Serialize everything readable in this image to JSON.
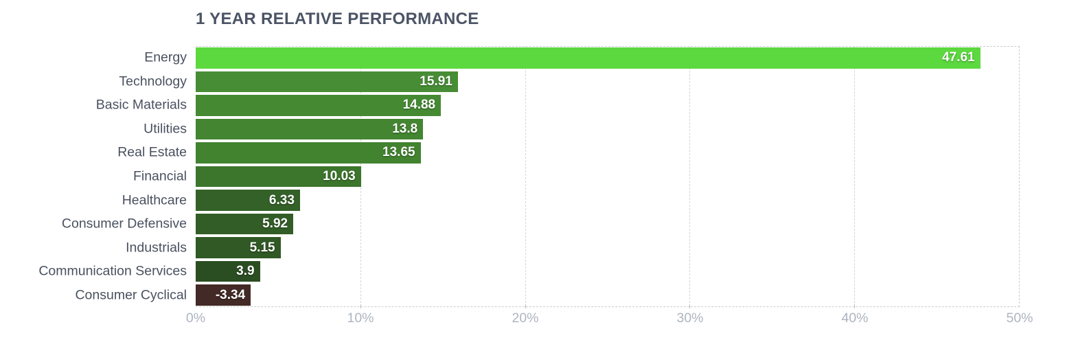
{
  "chart_data": {
    "type": "bar",
    "orientation": "horizontal",
    "title": "1 YEAR RELATIVE PERFORMANCE",
    "categories": [
      "Energy",
      "Technology",
      "Basic Materials",
      "Utilities",
      "Real Estate",
      "Financial",
      "Healthcare",
      "Consumer Defensive",
      "Industrials",
      "Communication Services",
      "Consumer Cyclical"
    ],
    "values": [
      47.61,
      15.91,
      14.88,
      13.8,
      13.65,
      10.03,
      6.33,
      5.92,
      5.15,
      3.9,
      -3.34
    ],
    "values_display": [
      "47.61",
      "15.91",
      "14.88",
      "13.8",
      "13.65",
      "10.03",
      "6.33",
      "5.92",
      "5.15",
      "3.9",
      "-3.34"
    ],
    "bar_colors": [
      "#5cd93f",
      "#478d35",
      "#458a33",
      "#438531",
      "#428330",
      "#3c752c",
      "#346128",
      "#325d26",
      "#305925",
      "#2b4d22",
      "#432a26"
    ],
    "x_ticks": [
      "0%",
      "10%",
      "20%",
      "30%",
      "40%",
      "50%"
    ],
    "xlim": [
      0,
      50
    ],
    "xlabel": "",
    "ylabel": "",
    "grid": "vertical-dashed",
    "legend": "none",
    "value_label_color": "#ffffff",
    "category_label_color": "#49515f",
    "axis_tick_color": "#aeb4bf",
    "grid_color": "#d2d4d6",
    "title_color": "#4b5465",
    "background_color": "#ffffff"
  }
}
